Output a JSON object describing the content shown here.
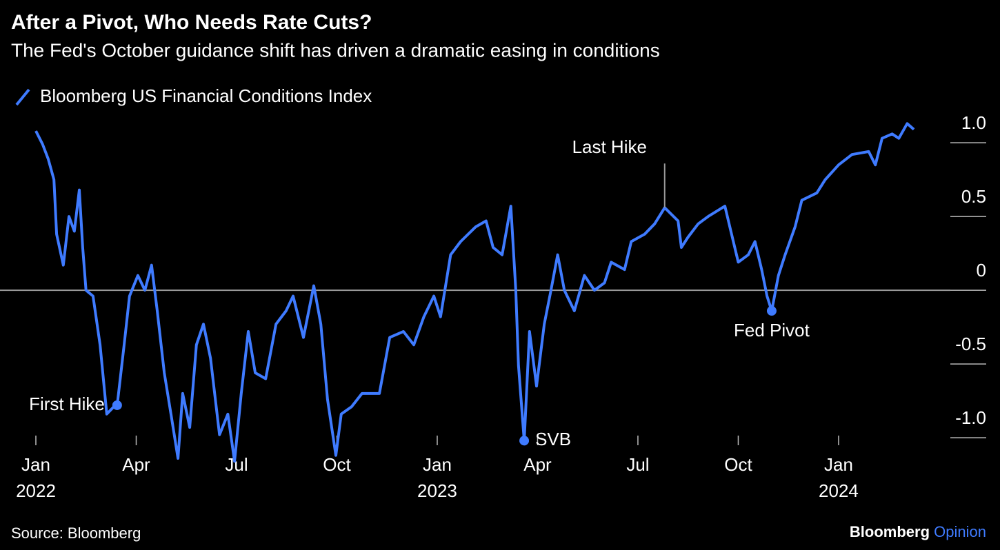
{
  "chart_data": {
    "type": "line",
    "title": "After a Pivot, Who Needs Rate Cuts?",
    "subtitle": "The Fed's October guidance shift has driven a dramatic easing in conditions",
    "source": "Source: Bloomberg",
    "brand": "Bloomberg",
    "brand_sub": "Opinion",
    "x": [
      0,
      0.2,
      0.37,
      0.54,
      0.62,
      0.82,
      0.99,
      1.15,
      1.3,
      1.4,
      1.5,
      1.71,
      1.92,
      2.12,
      2.33,
      2.43,
      2.64,
      2.8,
      3.05,
      3.26,
      3.46,
      3.63,
      3.84,
      4.04,
      4.25,
      4.39,
      4.6,
      4.8,
      5.01,
      5.22,
      5.49,
      5.74,
      5.94,
      6.14,
      6.35,
      6.56,
      6.87,
      7.18,
      7.48,
      7.69,
      8.0,
      8.31,
      8.52,
      8.72,
      8.97,
      9.13,
      9.44,
      9.75,
      10.27,
      10.58,
      10.99,
      11.3,
      11.6,
      11.9,
      12.1,
      12.4,
      12.7,
      13.15,
      13.46,
      13.67,
      13.94,
      14.2,
      14.35,
      14.43,
      14.6,
      14.76,
      14.97,
      15.2,
      15.4,
      15.6,
      15.8,
      16.1,
      16.4,
      16.7,
      17.0,
      17.2,
      17.6,
      17.8,
      18.2,
      18.5,
      18.8,
      19.2,
      19.3,
      19.5,
      19.8,
      20.1,
      20.6,
      20.8,
      21.0,
      21.3,
      21.5,
      21.7,
      21.86,
      22.0,
      22.2,
      22.4,
      22.7,
      22.9,
      23.35,
      23.6,
      24.0,
      24.4,
      24.9,
      25.1,
      25.3,
      25.6,
      25.8,
      26.05,
      26.25
    ],
    "series": [
      {
        "name": "Bloomberg US Financial Conditions Index",
        "color": "#3f7bff",
        "values": [
          1.08,
          0.99,
          0.89,
          0.75,
          0.38,
          0.17,
          0.5,
          0.4,
          0.68,
          0.29,
          0.0,
          -0.04,
          -0.37,
          -0.84,
          -0.79,
          -0.78,
          -0.37,
          -0.04,
          0.1,
          0.0,
          0.17,
          -0.14,
          -0.56,
          -0.84,
          -1.14,
          -0.7,
          -0.93,
          -0.37,
          -0.23,
          -0.46,
          -0.98,
          -0.84,
          -1.16,
          -0.7,
          -0.28,
          -0.56,
          -0.6,
          -0.23,
          -0.14,
          -0.04,
          -0.32,
          0.03,
          -0.23,
          -0.74,
          -1.12,
          -0.84,
          -0.79,
          -0.7,
          -0.7,
          -0.32,
          -0.28,
          -0.37,
          -0.18,
          -0.04,
          -0.18,
          0.24,
          0.33,
          0.43,
          0.47,
          0.29,
          0.24,
          0.57,
          0.0,
          -0.51,
          -1.02,
          -0.28,
          -0.65,
          -0.23,
          0.0,
          0.24,
          0.0,
          -0.14,
          0.1,
          0.0,
          0.05,
          0.19,
          0.14,
          0.33,
          0.38,
          0.45,
          0.56,
          0.47,
          0.29,
          0.36,
          0.45,
          0.5,
          0.57,
          0.38,
          0.19,
          0.24,
          0.33,
          0.14,
          -0.04,
          -0.14,
          0.1,
          0.24,
          0.43,
          0.61,
          0.66,
          0.75,
          0.85,
          0.92,
          0.94,
          0.85,
          1.03,
          1.06,
          1.03,
          1.13,
          1.09
        ]
      }
    ],
    "annotations": [
      {
        "label": "First Hike",
        "x": 2.43,
        "y": -0.78
      },
      {
        "label": "SVB",
        "x": 14.6,
        "y": -1.02
      },
      {
        "label": "Last Hike",
        "x": 18.8,
        "y": 0.56
      },
      {
        "label": "Fed Pivot",
        "x": 22.0,
        "y": -0.14
      }
    ],
    "xlim": [
      0,
      27.3
    ],
    "xticks": [
      {
        "value": 0,
        "label": "Jan"
      },
      {
        "value": 3,
        "label": "Apr"
      },
      {
        "value": 6,
        "label": "Jul"
      },
      {
        "value": 9,
        "label": "Oct"
      },
      {
        "value": 12,
        "label": "Jan"
      },
      {
        "value": 15,
        "label": "Apr"
      },
      {
        "value": 18,
        "label": "Jul"
      },
      {
        "value": 21,
        "label": "Oct"
      },
      {
        "value": 24,
        "label": "Jan"
      }
    ],
    "xtick_years": [
      {
        "value": 0,
        "label": "2022"
      },
      {
        "value": 12,
        "label": "2023"
      },
      {
        "value": 24,
        "label": "2024"
      }
    ],
    "ylim": [
      -1.21,
      1.15
    ],
    "yticks": [
      {
        "value": 1,
        "label": "1.0"
      },
      0.5,
      0,
      -0.5,
      {
        "value": -1,
        "label": "-1.0"
      }
    ]
  }
}
